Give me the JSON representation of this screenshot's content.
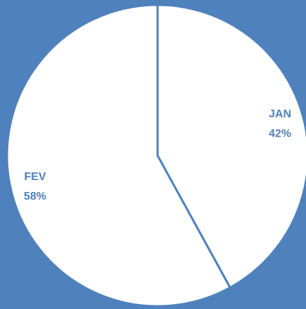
{
  "chart_data": {
    "type": "pie",
    "categories": [
      "JAN",
      "FEV"
    ],
    "values": [
      42,
      58
    ],
    "value_labels": [
      "42%",
      "58%"
    ],
    "colors": [
      "#ffffff",
      "#ffffff"
    ]
  }
}
